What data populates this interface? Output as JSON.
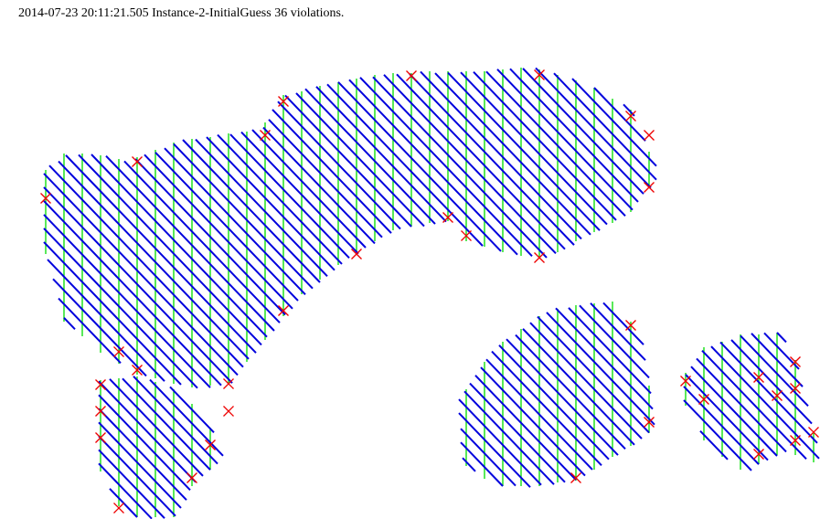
{
  "caption": "2014-07-23 20:11:21.505 Instance-2-InitialGuess 36 violations.",
  "colors": {
    "green_lines": "#00dd00",
    "blue_lines": "#0000dd",
    "violation_marks": "#ee0000"
  },
  "violation_marker_icon": "red-x-icon"
}
